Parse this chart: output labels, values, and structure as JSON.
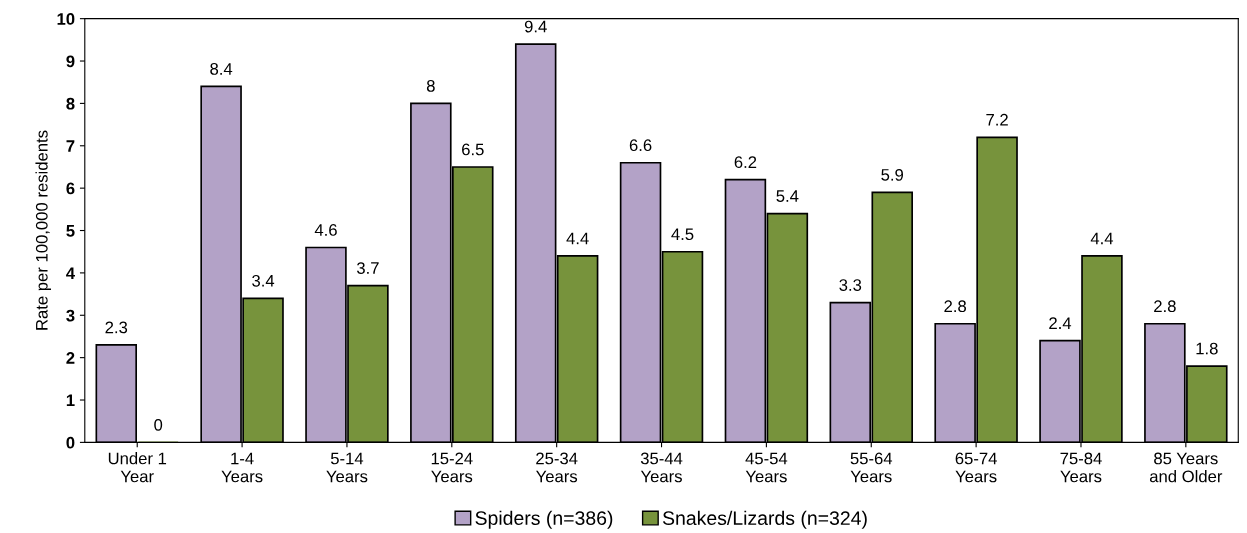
{
  "chart_data": {
    "type": "bar",
    "ylabel": "Rate per 100,000 residents",
    "categories": [
      "Under 1\nYear",
      "1-4\nYears",
      "5-14\nYears",
      "15-24\nYears",
      "25-34\nYears",
      "35-44\nYears",
      "45-54\nYears",
      "55-64\nYears",
      "65-74\nYears",
      "75-84\nYears",
      "85 Years\nand Older"
    ],
    "series": [
      {
        "name": "Spiders (n=386)",
        "color": "#b3a2c7",
        "values": [
          2.3,
          8.4,
          4.6,
          8,
          9.4,
          6.6,
          6.2,
          3.3,
          2.8,
          2.4,
          2.8
        ]
      },
      {
        "name": "Snakes/Lizards (n=324)",
        "color": "#77933c",
        "values": [
          0,
          3.4,
          3.7,
          6.5,
          4.4,
          4.5,
          5.4,
          5.9,
          7.2,
          4.4,
          1.8
        ]
      }
    ],
    "ylim": [
      0,
      10
    ],
    "yticks": [
      0,
      1,
      2,
      3,
      4,
      5,
      6,
      7,
      8,
      9,
      10
    ],
    "grid": false,
    "legend": "bottom",
    "data_labels": true
  }
}
